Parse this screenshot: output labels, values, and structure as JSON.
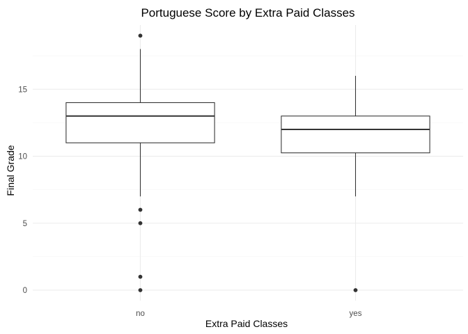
{
  "chart_data": {
    "type": "boxplot",
    "title": "Portuguese Score by Extra Paid Classes",
    "xlabel": "Extra Paid Classes",
    "ylabel": "Final Grade",
    "categories": [
      "no",
      "yes"
    ],
    "ylim": [
      -1,
      20
    ],
    "yticks": [
      0,
      5,
      10,
      15
    ],
    "y_tick_labels": [
      "0",
      "5",
      "10",
      "15"
    ],
    "grid": true,
    "legend": "none",
    "boxes": [
      {
        "category": "no",
        "lower_whisker": 7,
        "q1": 11,
        "median": 13,
        "q3": 14,
        "upper_whisker": 18,
        "outliers": [
          19,
          6,
          5,
          1,
          0
        ]
      },
      {
        "category": "yes",
        "lower_whisker": 7,
        "q1": 10.25,
        "median": 12,
        "q3": 13,
        "upper_whisker": 16,
        "outliers": [
          0
        ]
      }
    ],
    "colors": {
      "box_line": "#333333",
      "box_fill": "#ffffff",
      "grid": "#ebebeb"
    }
  }
}
